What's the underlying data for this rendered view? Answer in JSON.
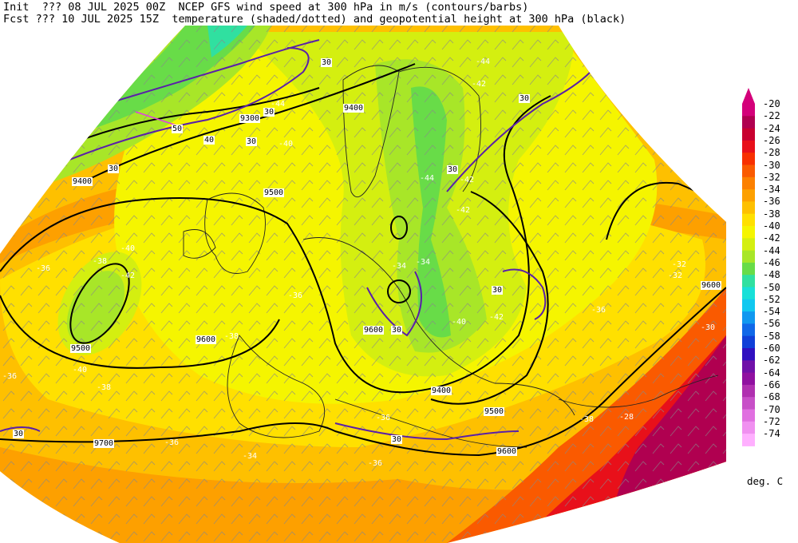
{
  "header": {
    "line1": "Init  ??? 08 JUL 2025 00Z  NCEP GFS wind speed at 300 hPa in m/s (contours/barbs)",
    "line2": "Fcst ??? 10 JUL 2025 15Z  temperature (shaded/dotted) and geopotential height at 300 hPa (black)"
  },
  "colorbar": {
    "levels": [
      "-20",
      "-22",
      "-24",
      "-26",
      "-28",
      "-30",
      "-32",
      "-34",
      "-36",
      "-38",
      "-40",
      "-42",
      "-44",
      "-46",
      "-48",
      "-50",
      "-52",
      "-54",
      "-56",
      "-58",
      "-60",
      "-62",
      "-64",
      "-66",
      "-68",
      "-70",
      "-72",
      "-74"
    ],
    "colors": [
      "#d4007a",
      "#b00050",
      "#c80030",
      "#e8101a",
      "#f83000",
      "#fa5a00",
      "#fc8000",
      "#fda000",
      "#fec000",
      "#ffe000",
      "#f5f500",
      "#d4ef10",
      "#a8e628",
      "#68dc48",
      "#30e0a0",
      "#18e0d8",
      "#10c8f0",
      "#1098f0",
      "#1068e8",
      "#1040d8",
      "#3010c0",
      "#7010a8",
      "#9010a0",
      "#b030b0",
      "#c850c8",
      "#e070e0",
      "#f090f0",
      "#ffb0ff"
    ],
    "units": "deg. C"
  },
  "map": {
    "height_labels": [
      "9300",
      "9400",
      "9400",
      "9500",
      "9500",
      "9600",
      "9600",
      "9700",
      "9600",
      "9600",
      "9500",
      "9400"
    ],
    "wind_labels": [
      "30",
      "30",
      "30",
      "40",
      "50",
      "30",
      "30",
      "30",
      "30",
      "30",
      "30",
      "30"
    ],
    "temp_labels": [
      "-36",
      "-38",
      "-40",
      "-42",
      "-44",
      "-44",
      "-42",
      "-42",
      "-42",
      "-40",
      "-38",
      "-36",
      "-36",
      "-34",
      "-32",
      "-32",
      "-30",
      "-28",
      "-36",
      "-38",
      "-36",
      "-34",
      "-34",
      "-36",
      "-40",
      "-42",
      "-44",
      "-40",
      "-38",
      "-36"
    ]
  }
}
